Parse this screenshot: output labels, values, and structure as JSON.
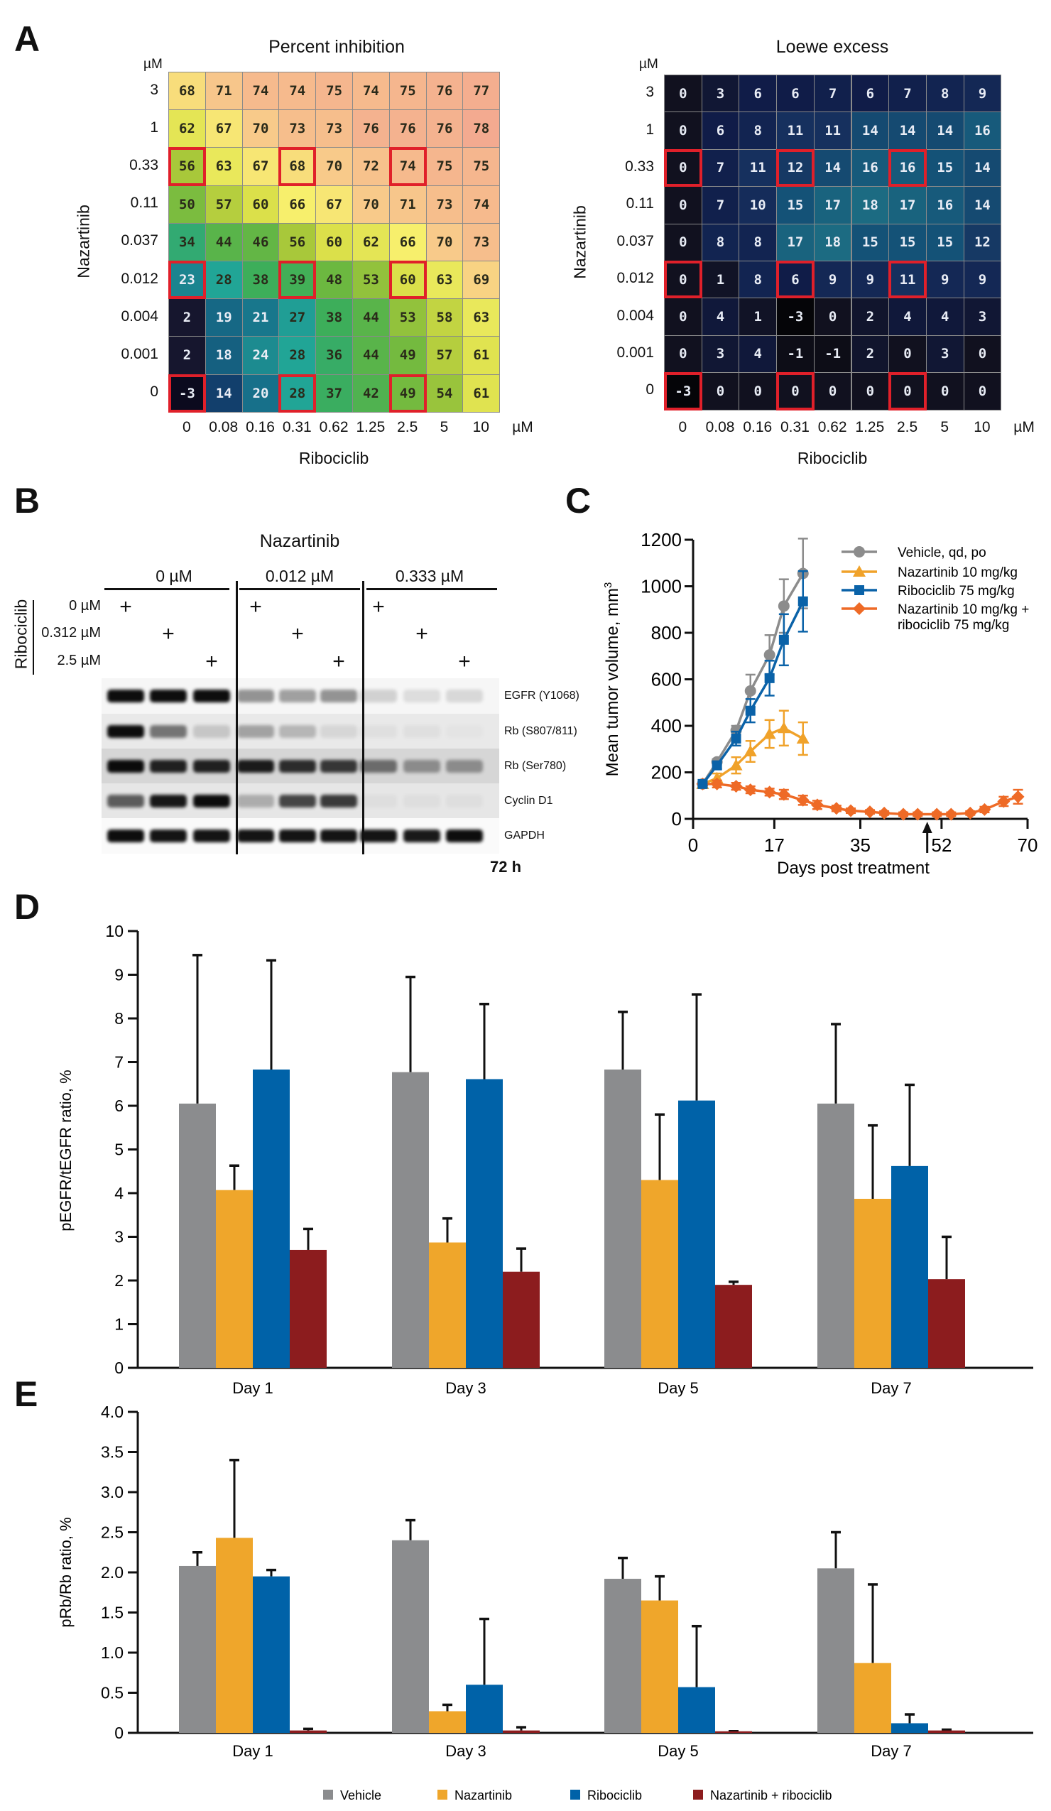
{
  "panels": {
    "a": "A",
    "b": "B",
    "c": "C",
    "d": "D",
    "e": "E"
  },
  "chart_data": [
    {
      "id": "percent-inhibition",
      "type": "heatmap",
      "title": "Percent inhibition",
      "xlabel": "Ribociclib",
      "ylabel": "Nazartinib",
      "unit": "µM",
      "x_ticks": [
        "0",
        "0.08",
        "0.16",
        "0.31",
        "0.62",
        "1.25",
        "2.5",
        "5",
        "10"
      ],
      "y_ticks": [
        "3",
        "1",
        "0.33",
        "0.11",
        "0.037",
        "0.012",
        "0.004",
        "0.001",
        "0"
      ],
      "highlight_rows": [
        2,
        5,
        8
      ],
      "highlight_cols": [
        0,
        3,
        6
      ],
      "values": [
        [
          68,
          71,
          74,
          74,
          75,
          74,
          75,
          76,
          77
        ],
        [
          62,
          67,
          70,
          73,
          73,
          76,
          76,
          76,
          78
        ],
        [
          56,
          63,
          67,
          68,
          70,
          72,
          74,
          75,
          75
        ],
        [
          50,
          57,
          60,
          66,
          67,
          70,
          71,
          73,
          74
        ],
        [
          34,
          44,
          46,
          56,
          60,
          62,
          66,
          70,
          73
        ],
        [
          23,
          28,
          38,
          39,
          48,
          53,
          60,
          63,
          69
        ],
        [
          2,
          19,
          21,
          27,
          38,
          44,
          53,
          58,
          63
        ],
        [
          2,
          18,
          24,
          28,
          36,
          44,
          49,
          57,
          61
        ],
        [
          -3,
          14,
          20,
          28,
          37,
          42,
          49,
          54,
          61
        ]
      ]
    },
    {
      "id": "loewe-excess",
      "type": "heatmap",
      "title": "Loewe excess",
      "xlabel": "Ribociclib",
      "ylabel": "Nazartinib",
      "unit": "µM",
      "x_ticks": [
        "0",
        "0.08",
        "0.16",
        "0.31",
        "0.62",
        "1.25",
        "2.5",
        "5",
        "10"
      ],
      "y_ticks": [
        "3",
        "1",
        "0.33",
        "0.11",
        "0.037",
        "0.012",
        "0.004",
        "0.001",
        "0"
      ],
      "highlight_rows": [
        2,
        5,
        8
      ],
      "highlight_cols": [
        0,
        3,
        6
      ],
      "values": [
        [
          0,
          3,
          6,
          6,
          7,
          6,
          7,
          8,
          9
        ],
        [
          0,
          6,
          8,
          11,
          11,
          14,
          14,
          14,
          16
        ],
        [
          0,
          7,
          11,
          12,
          14,
          16,
          16,
          15,
          14
        ],
        [
          0,
          7,
          10,
          15,
          17,
          18,
          17,
          16,
          14
        ],
        [
          0,
          8,
          8,
          17,
          18,
          15,
          15,
          15,
          12
        ],
        [
          0,
          1,
          8,
          6,
          9,
          9,
          11,
          9,
          9
        ],
        [
          0,
          4,
          1,
          -3,
          0,
          2,
          4,
          4,
          3
        ],
        [
          0,
          3,
          4,
          -1,
          -1,
          2,
          0,
          3,
          0
        ],
        [
          -3,
          0,
          0,
          0,
          0,
          0,
          0,
          0,
          0
        ]
      ]
    },
    {
      "id": "tumor-volume",
      "type": "line",
      "xlabel": "Days post treatment",
      "ylabel": "Mean tumor volume, mm",
      "ylabel_sup": "3",
      "xlim": [
        0,
        70
      ],
      "ylim": [
        0,
        1200
      ],
      "x_ticks": [
        0,
        17,
        35,
        52,
        70
      ],
      "y_ticks": [
        0,
        200,
        400,
        600,
        800,
        1000,
        1200
      ],
      "arrow_day": 49,
      "legend_position": "top-right",
      "series": [
        {
          "name": "Vehicle, qd, po",
          "color": "#8c8c8c",
          "marker": "circle",
          "x": [
            2,
            5,
            9,
            12,
            16,
            19,
            23
          ],
          "y": [
            150,
            245,
            380,
            550,
            705,
            915,
            1055
          ],
          "err": [
            8,
            12,
            20,
            70,
            85,
            115,
            150
          ]
        },
        {
          "name": "Nazartinib 10 mg/kg",
          "color": "#f0a22a",
          "marker": "triangle",
          "x": [
            2,
            5,
            9,
            12,
            16,
            19,
            23
          ],
          "y": [
            150,
            175,
            230,
            290,
            365,
            390,
            345
          ],
          "err": [
            8,
            20,
            35,
            45,
            60,
            75,
            70
          ]
        },
        {
          "name": "Ribociclib 75 mg/kg",
          "color": "#0a62a8",
          "marker": "square",
          "x": [
            2,
            5,
            9,
            12,
            16,
            19,
            23
          ],
          "y": [
            150,
            230,
            345,
            465,
            605,
            770,
            935
          ],
          "err": [
            8,
            15,
            30,
            50,
            75,
            110,
            130
          ]
        },
        {
          "name": "Nazartinib 10 mg/kg +",
          "name2": "ribociclib 75 mg/kg",
          "color": "#ee6a26",
          "marker": "diamond",
          "x": [
            2,
            5,
            9,
            12,
            16,
            19,
            23,
            26,
            30,
            33,
            37,
            40,
            44,
            47,
            51,
            54,
            58,
            61,
            65,
            68
          ],
          "y": [
            150,
            150,
            140,
            125,
            115,
            105,
            80,
            60,
            45,
            35,
            30,
            25,
            20,
            20,
            20,
            20,
            25,
            40,
            75,
            95
          ],
          "err": [
            12,
            15,
            15,
            15,
            15,
            20,
            20,
            18,
            12,
            10,
            8,
            8,
            8,
            8,
            8,
            8,
            8,
            12,
            20,
            30
          ]
        }
      ]
    },
    {
      "id": "pegfr-ratio",
      "type": "bar",
      "ylabel": "pEGFR/tEGFR ratio, %",
      "ylim": [
        0,
        10
      ],
      "y_ticks": [
        "0",
        "1",
        "2",
        "3",
        "4",
        "5",
        "6",
        "7",
        "8",
        "9",
        "10"
      ],
      "categories": [
        "Day 1",
        "Day 3",
        "Day 5",
        "Day 7"
      ],
      "series": [
        {
          "name": "Vehicle",
          "color": "#8b8c8e",
          "values": [
            6.05,
            6.77,
            6.83,
            6.05
          ],
          "err_top": [
            9.45,
            8.95,
            8.15,
            7.87
          ]
        },
        {
          "name": "Nazartinib",
          "color": "#efa62b",
          "values": [
            4.07,
            2.87,
            4.3,
            3.87
          ],
          "err_top": [
            4.63,
            3.42,
            5.8,
            5.55
          ]
        },
        {
          "name": "Ribociclib",
          "color": "#0062a8",
          "values": [
            6.83,
            6.61,
            6.12,
            4.62
          ],
          "err_top": [
            9.33,
            8.33,
            8.55,
            6.48
          ]
        },
        {
          "name": "Nazartinib + ribociclib",
          "color": "#8c1c1e",
          "values": [
            2.7,
            2.2,
            1.9,
            2.03
          ],
          "err_top": [
            3.18,
            2.73,
            1.97,
            3.0
          ]
        }
      ]
    },
    {
      "id": "prb-ratio",
      "type": "bar",
      "ylabel": "pRb/Rb ratio, %",
      "ylim": [
        0,
        4
      ],
      "y_ticks": [
        "0",
        "0.5",
        "1.0",
        "1.5",
        "2.0",
        "2.5",
        "3.0",
        "3.5",
        "4.0"
      ],
      "categories": [
        "Day 1",
        "Day 3",
        "Day 5",
        "Day 7"
      ],
      "legend_position": "bottom",
      "series": [
        {
          "name": "Vehicle",
          "color": "#8b8c8e",
          "values": [
            2.08,
            2.4,
            1.92,
            2.05
          ],
          "err_top": [
            2.25,
            2.65,
            2.18,
            2.5
          ]
        },
        {
          "name": "Nazartinib",
          "color": "#efa62b",
          "values": [
            2.43,
            0.27,
            1.65,
            0.87
          ],
          "err_top": [
            3.4,
            0.35,
            1.95,
            1.85
          ]
        },
        {
          "name": "Ribociclib",
          "color": "#0062a8",
          "values": [
            1.95,
            0.6,
            0.57,
            0.12
          ],
          "err_top": [
            2.03,
            1.42,
            1.33,
            0.23
          ]
        },
        {
          "name": "Nazartinib + ribociclib",
          "color": "#8c1c1e",
          "values": [
            0.03,
            0.03,
            0.02,
            0.03
          ],
          "err_top": [
            0.05,
            0.07,
            0.02,
            0.04
          ]
        }
      ]
    }
  ],
  "blot": {
    "title": "Nazartinib",
    "groups": [
      "0 µM",
      "0.012 µM",
      "0.333 µM"
    ],
    "ribociclib_label": "Ribociclib",
    "ribociclib_doses": [
      "0 µM",
      "0.312 µM",
      "2.5 µM"
    ],
    "plus": "+",
    "time": "72 h",
    "rows": [
      {
        "label": "EGFR (Y1068)",
        "intensity": [
          0.95,
          0.95,
          0.95,
          0.4,
          0.35,
          0.4,
          0.15,
          0.1,
          0.12
        ]
      },
      {
        "label": "Rb (S807/811)",
        "intensity": [
          0.95,
          0.5,
          0.15,
          0.3,
          0.22,
          0.08,
          0.04,
          0.04,
          0.02
        ]
      },
      {
        "label": "Rb (Ser780)",
        "intensity": [
          0.95,
          0.85,
          0.85,
          0.88,
          0.8,
          0.75,
          0.5,
          0.35,
          0.35
        ]
      },
      {
        "label": "Cyclin D1",
        "intensity": [
          0.6,
          0.9,
          0.95,
          0.25,
          0.7,
          0.75,
          0.03,
          0.03,
          0.03
        ]
      },
      {
        "label": "GAPDH",
        "intensity": [
          0.95,
          0.92,
          0.92,
          0.92,
          0.92,
          0.92,
          0.92,
          0.9,
          0.95
        ]
      }
    ]
  }
}
